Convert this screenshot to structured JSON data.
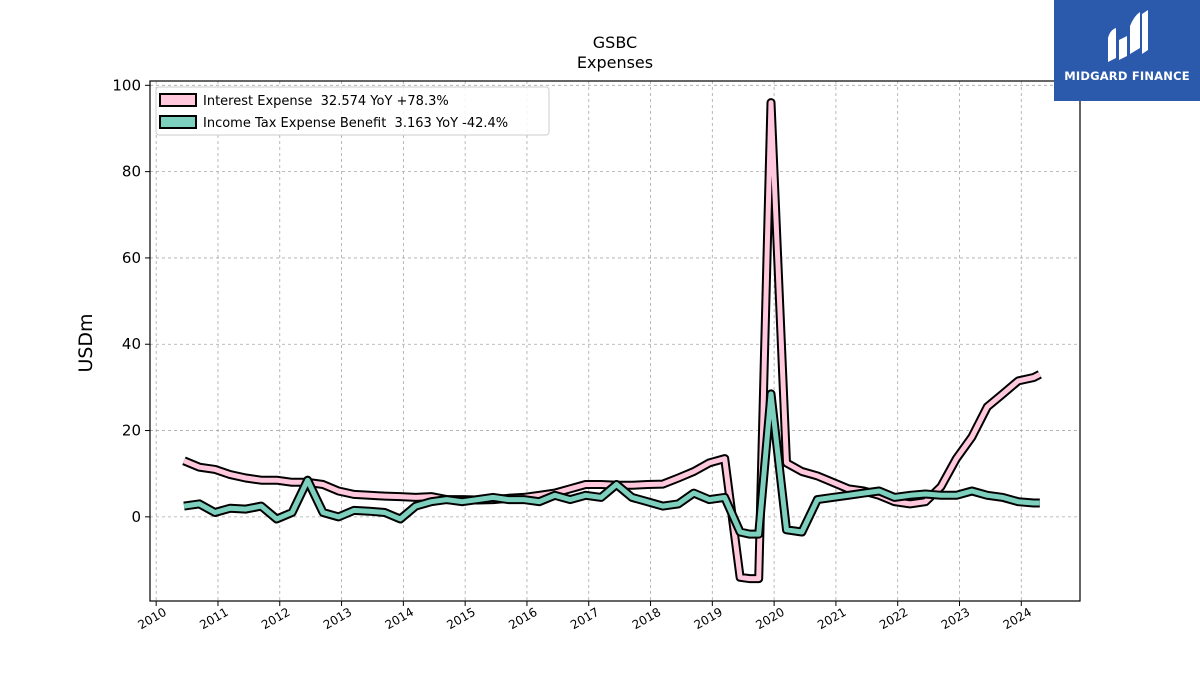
{
  "chart_data": {
    "type": "line",
    "title": "GSBC",
    "subtitle": "Expenses",
    "xlabel": "",
    "ylabel": "USDm",
    "xlim": [
      2009.9,
      2024.95
    ],
    "ylim": [
      -19.5,
      101
    ],
    "yticks": [
      0,
      20,
      40,
      60,
      80,
      100
    ],
    "xticks": [
      2010,
      2011,
      2012,
      2013,
      2014,
      2015,
      2016,
      2017,
      2018,
      2019,
      2020,
      2021,
      2022,
      2023,
      2024
    ],
    "grid": true,
    "legend_position": "top-left",
    "series": [
      {
        "name": "Interest Expense  32.574 YoY +78.3%",
        "color": "#ffc8dd",
        "x": [
          2010.45,
          2010.7,
          2010.95,
          2011.2,
          2011.45,
          2011.7,
          2011.95,
          2012.2,
          2012.45,
          2012.7,
          2012.95,
          2013.2,
          2013.45,
          2013.7,
          2013.95,
          2014.2,
          2014.45,
          2014.7,
          2014.95,
          2015.2,
          2015.45,
          2015.7,
          2015.95,
          2016.2,
          2016.45,
          2016.7,
          2016.95,
          2017.2,
          2017.45,
          2017.7,
          2017.95,
          2018.2,
          2018.45,
          2018.7,
          2018.95,
          2019.2,
          2019.45,
          2019.6,
          2019.75,
          2019.95,
          2020.2,
          2020.45,
          2020.7,
          2020.95,
          2021.2,
          2021.45,
          2021.7,
          2021.95,
          2022.2,
          2022.45,
          2022.7,
          2022.95,
          2023.2,
          2023.45,
          2023.7,
          2023.95,
          2024.2,
          2024.3
        ],
        "values": [
          13.0,
          11.5,
          11.0,
          9.8,
          9.0,
          8.5,
          8.5,
          8.0,
          8.0,
          7.5,
          6.0,
          5.2,
          5.0,
          4.8,
          4.7,
          4.5,
          4.7,
          4.0,
          4.0,
          3.9,
          4.0,
          4.3,
          4.5,
          5.0,
          5.5,
          6.5,
          7.5,
          7.5,
          7.3,
          7.3,
          7.5,
          7.6,
          9.0,
          10.5,
          12.5,
          13.5,
          -14.0,
          -14.3,
          -14.3,
          96.0,
          12.5,
          10.5,
          9.5,
          8.0,
          6.5,
          6.0,
          5.0,
          3.5,
          3.0,
          3.5,
          7.0,
          13.5,
          18.5,
          25.5,
          28.5,
          31.5,
          32.3,
          33.0
        ]
      },
      {
        "name": "Income Tax Expense Benefit  3.163 YoY -42.4%",
        "color": "#7dcfbe",
        "x": [
          2010.45,
          2010.7,
          2010.95,
          2011.2,
          2011.45,
          2011.7,
          2011.95,
          2012.2,
          2012.45,
          2012.7,
          2012.95,
          2013.2,
          2013.45,
          2013.7,
          2013.95,
          2014.2,
          2014.45,
          2014.7,
          2014.95,
          2015.2,
          2015.45,
          2015.7,
          2015.95,
          2016.2,
          2016.45,
          2016.7,
          2016.95,
          2017.2,
          2017.45,
          2017.7,
          2017.95,
          2018.2,
          2018.45,
          2018.7,
          2018.95,
          2019.2,
          2019.45,
          2019.6,
          2019.75,
          2019.95,
          2020.2,
          2020.45,
          2020.7,
          2020.95,
          2021.2,
          2021.45,
          2021.7,
          2021.95,
          2022.2,
          2022.45,
          2022.7,
          2022.95,
          2023.2,
          2023.45,
          2023.7,
          2023.95,
          2024.2,
          2024.3
        ],
        "values": [
          2.5,
          3.0,
          1.0,
          2.0,
          1.8,
          2.5,
          -0.5,
          1.0,
          8.5,
          1.0,
          0.0,
          1.5,
          1.3,
          1.0,
          -0.5,
          2.5,
          3.5,
          4.0,
          3.5,
          4.0,
          4.5,
          4.0,
          4.0,
          3.5,
          5.0,
          4.0,
          5.0,
          4.5,
          7.5,
          4.5,
          3.5,
          2.5,
          3.0,
          5.5,
          4.0,
          4.5,
          -3.5,
          -4.0,
          -4.0,
          28.5,
          -3.0,
          -3.5,
          4.0,
          4.5,
          5.0,
          5.5,
          6.0,
          4.5,
          5.0,
          5.3,
          5.0,
          5.0,
          6.0,
          5.0,
          4.5,
          3.5,
          3.2,
          3.2
        ]
      }
    ]
  },
  "logo": {
    "text": "MIDGARD FINANCE",
    "bg_color": "#2b5aad"
  }
}
